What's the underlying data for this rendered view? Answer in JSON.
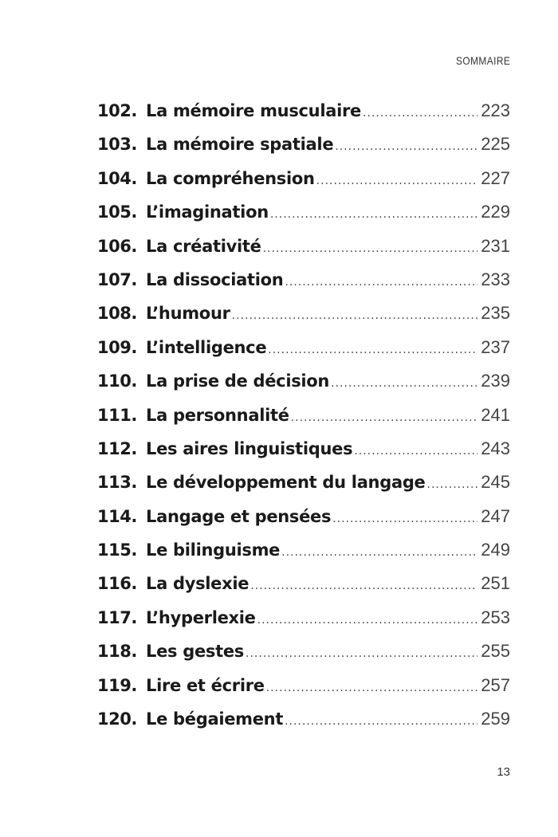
{
  "header": {
    "section": "SOMMAIRE"
  },
  "entries": [
    {
      "num": "102.",
      "title": "La mémoire musculaire",
      "page": "223"
    },
    {
      "num": "103.",
      "title": "La mémoire spatiale",
      "page": "225"
    },
    {
      "num": "104.",
      "title": "La compréhension",
      "page": "227"
    },
    {
      "num": "105.",
      "title": "L’imagination",
      "page": "229"
    },
    {
      "num": "106.",
      "title": "La créativité",
      "page": "231"
    },
    {
      "num": "107.",
      "title": "La dissociation",
      "page": "233"
    },
    {
      "num": "108.",
      "title": "L’humour",
      "page": "235"
    },
    {
      "num": "109.",
      "title": "L’intelligence",
      "page": "237"
    },
    {
      "num": "110.",
      "title": "La prise de décision",
      "page": "239"
    },
    {
      "num": "111.",
      "title": "La personnalité",
      "page": "241"
    },
    {
      "num": "112.",
      "title": "Les aires linguistiques",
      "page": "243"
    },
    {
      "num": "113.",
      "title": "Le développement du langage",
      "page": "245"
    },
    {
      "num": "114.",
      "title": "Langage et pensées",
      "page": "247"
    },
    {
      "num": "115.",
      "title": "Le bilinguisme",
      "page": "249"
    },
    {
      "num": "116.",
      "title": "La dyslexie",
      "page": "251"
    },
    {
      "num": "117.",
      "title": "L’hyperlexie",
      "page": "253"
    },
    {
      "num": "118.",
      "title": "Les gestes",
      "page": "255"
    },
    {
      "num": "119.",
      "title": "Lire et écrire",
      "page": "257"
    },
    {
      "num": "120.",
      "title": "Le bégaiement",
      "page": "259"
    }
  ],
  "footer": {
    "page_number": "13"
  }
}
